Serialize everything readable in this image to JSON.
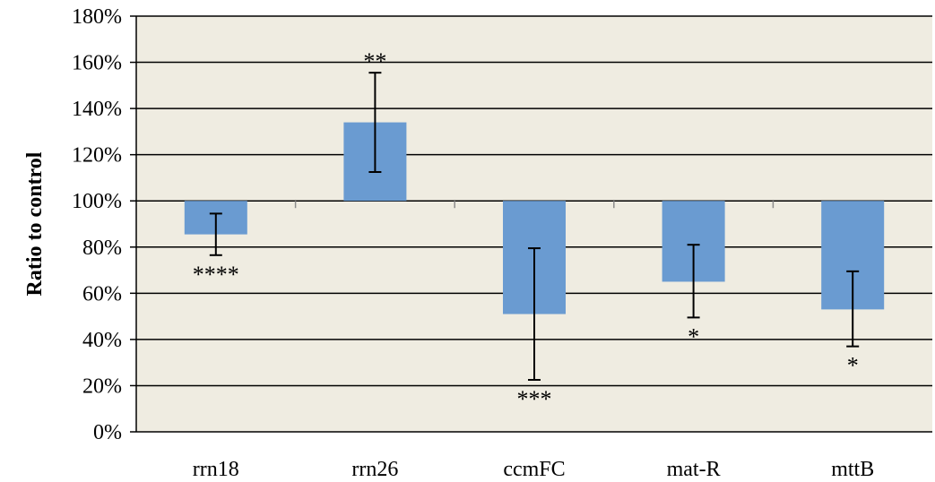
{
  "chart_data": {
    "type": "bar",
    "title": "",
    "xlabel": "",
    "ylabel": "Ratio to control",
    "baseline": 1.0,
    "ylim": [
      0,
      1.8
    ],
    "yticks": [
      0,
      0.2,
      0.4,
      0.6,
      0.8,
      1.0,
      1.2,
      1.4,
      1.6,
      1.8
    ],
    "ytick_labels": [
      "0%",
      "20%",
      "40%",
      "60%",
      "80%",
      "100%",
      "120%",
      "140%",
      "160%",
      "180%"
    ],
    "grid": true,
    "categories": [
      "rrn18",
      "rrn26",
      "ccmFC",
      "mat-R",
      "mttB"
    ],
    "values": [
      0.855,
      1.34,
      0.51,
      0.65,
      0.53
    ],
    "error_low": [
      0.765,
      1.125,
      0.225,
      0.495,
      0.37
    ],
    "error_high": [
      0.945,
      1.555,
      0.795,
      0.81,
      0.695
    ],
    "significance": [
      "****",
      "**",
      "***",
      "*",
      "*"
    ],
    "colors": {
      "bar": "#6a9bd1",
      "plot_background": "#efece1",
      "grid": "#000000",
      "axis": "#000000"
    }
  }
}
